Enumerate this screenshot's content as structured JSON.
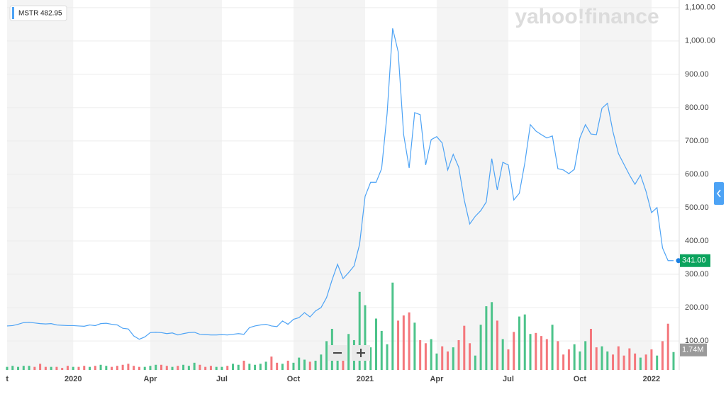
{
  "chart_data": {
    "type": "line",
    "watermark": "yahoo!finance",
    "legend_value": 482.95,
    "categories": [
      "t",
      null,
      null,
      null,
      null,
      null,
      null,
      null,
      null,
      null,
      null,
      null,
      "2020",
      null,
      null,
      null,
      null,
      null,
      null,
      null,
      null,
      null,
      null,
      null,
      null,
      null,
      "Apr",
      null,
      null,
      null,
      null,
      null,
      null,
      null,
      null,
      null,
      null,
      null,
      null,
      "Jul",
      null,
      null,
      null,
      null,
      null,
      null,
      null,
      null,
      null,
      null,
      null,
      null,
      "Oct",
      null,
      null,
      null,
      null,
      null,
      null,
      null,
      null,
      null,
      null,
      null,
      null,
      "2021",
      null,
      null,
      null,
      null,
      null,
      null,
      null,
      null,
      null,
      null,
      null,
      null,
      "Apr",
      null,
      null,
      null,
      null,
      null,
      null,
      null,
      null,
      null,
      null,
      null,
      null,
      "Jul",
      null,
      null,
      null,
      null,
      null,
      null,
      null,
      null,
      null,
      null,
      null,
      null,
      "Oct",
      null,
      null,
      null,
      null,
      null,
      null,
      null,
      null,
      null,
      null,
      null,
      null,
      "2022",
      null,
      null,
      null,
      null
    ],
    "series": [
      {
        "name": "MSTR",
        "color": "#4da3f5",
        "values": [
          145,
          146,
          150,
          155,
          156,
          154,
          152,
          151,
          152,
          148,
          147,
          146,
          146,
          145,
          144,
          148,
          146,
          152,
          153,
          150,
          148,
          138,
          136,
          115,
          105,
          112,
          125,
          126,
          125,
          122,
          124,
          118,
          122,
          125,
          126,
          120,
          119,
          118,
          118,
          119,
          118,
          120,
          122,
          120,
          140,
          145,
          148,
          150,
          145,
          143,
          160,
          150,
          165,
          170,
          185,
          172,
          190,
          200,
          230,
          283,
          330,
          287,
          305,
          325,
          390,
          534,
          576,
          576,
          617,
          783,
          1038,
          968,
          719,
          619,
          785,
          779,
          628,
          704,
          713,
          694,
          613,
          660,
          621,
          523,
          451,
          474,
          491,
          517,
          647,
          553,
          636,
          628,
          523,
          543,
          634,
          749,
          730,
          719,
          709,
          715,
          617,
          613,
          602,
          615,
          709,
          749,
          721,
          719,
          798,
          813,
          728,
          662,
          630,
          598,
          570,
          598,
          549,
          485,
          500,
          379,
          341,
          341
        ]
      },
      {
        "axis": "y2",
        "up_color": "#4cc38a",
        "down_color": "#f4777c",
        "values": [
          0.3,
          0.4,
          0.3,
          0.4,
          0.4,
          0.3,
          0.6,
          0.3,
          0.3,
          0.3,
          0.2,
          0.4,
          0.3,
          0.3,
          0.4,
          0.3,
          0.4,
          0.5,
          0.4,
          0.3,
          0.4,
          0.5,
          0.6,
          0.4,
          0.3,
          0.3,
          0.4,
          0.5,
          0.5,
          0.4,
          0.3,
          0.4,
          0.5,
          0.4,
          0.7,
          0.5,
          0.3,
          0.4,
          0.3,
          0.3,
          0.4,
          0.6,
          0.5,
          0.9,
          0.6,
          0.5,
          0.6,
          0.8,
          1.3,
          0.7,
          0.6,
          0.9,
          0.7,
          1.2,
          1.0,
          0.8,
          0.9,
          1.5,
          2.8,
          4.0,
          2.0,
          1.6,
          3.5,
          2.9,
          7.6,
          6.3,
          2.2,
          5.0,
          3.8,
          2.5,
          8.5,
          4.8,
          5.3,
          5.6,
          4.6,
          2.9,
          2.6,
          3.0,
          1.6,
          2.3,
          1.8,
          2.2,
          2.9,
          4.3,
          2.6,
          1.4,
          4.4,
          6.2,
          6.6,
          4.8,
          3.0,
          2.0,
          3.7,
          5.2,
          5.4,
          3.5,
          3.6,
          3.3,
          3.0,
          4.4,
          2.8,
          1.5,
          2.0,
          2.5,
          1.8,
          2.8,
          4.0,
          2.2,
          2.3,
          1.8,
          1.5,
          2.3,
          1.4,
          2.1,
          1.6,
          1.2,
          1.5,
          2.0,
          1.4,
          2.8,
          4.5,
          1.74
        ]
      }
    ],
    "current_price": {
      "value": 341,
      "label": "341.00"
    },
    "current_volume": {
      "value": 1.74,
      "label": "1.74M"
    },
    "ylim": [
      13,
      1123
    ],
    "yticks": [
      {
        "value": 100,
        "label": "100.00"
      },
      {
        "value": 200,
        "label": "200.00"
      },
      {
        "value": 300,
        "label": "300.00"
      },
      {
        "value": 400,
        "label": "400.00"
      },
      {
        "value": 500,
        "label": "500.00"
      },
      {
        "value": 600,
        "label": "600.00"
      },
      {
        "value": 700,
        "label": "700.00"
      },
      {
        "value": 800,
        "label": "800.00"
      },
      {
        "value": 900,
        "label": "900.00"
      },
      {
        "value": 1000,
        "label": "1,000.00"
      },
      {
        "value": 1100,
        "label": "1,100.00"
      }
    ],
    "y2lim": [
      0,
      36
    ],
    "grid": true
  }
}
